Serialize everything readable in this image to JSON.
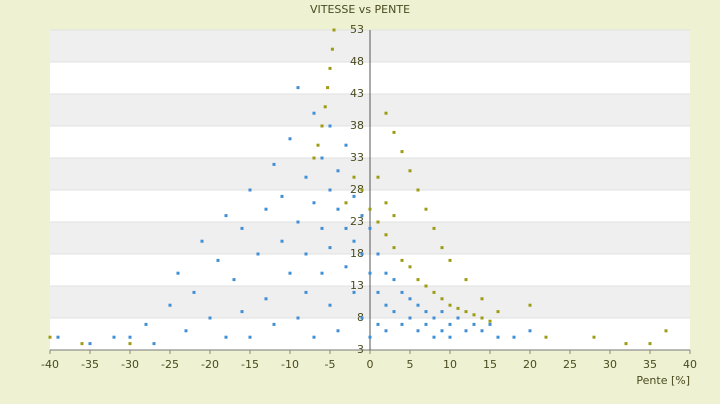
{
  "chart_data": {
    "type": "scatter",
    "title": "VITESSE vs PENTE",
    "x_label": "Pente [%]",
    "xlim": [
      -40,
      40
    ],
    "xticks": [
      -40,
      -35,
      -30,
      -25,
      -20,
      -15,
      -10,
      -5,
      0,
      5,
      10,
      15,
      20,
      25,
      30,
      35,
      40
    ],
    "ylim": [
      3,
      53
    ],
    "yticks": [
      3,
      8,
      13,
      18,
      23,
      28,
      33,
      38,
      43,
      48,
      53
    ],
    "grid": true,
    "series": [
      {
        "color": "#3f8fd6",
        "x": [
          -30,
          -28,
          -27,
          -25,
          -24,
          -23,
          -22,
          -21,
          -20,
          -19,
          -18,
          -18,
          -17,
          -16,
          -16,
          -15,
          -15,
          -14,
          -13,
          -13,
          -12,
          -12,
          -11,
          -11,
          -10,
          -10,
          -9,
          -9,
          -9,
          -8,
          -8,
          -8,
          -7,
          -7,
          -7,
          -6,
          -6,
          -6,
          -5,
          -5,
          -5,
          -5,
          -4,
          -4,
          -4,
          -3,
          -3,
          -3,
          -2,
          -2,
          -2,
          -1,
          -1,
          -1,
          0,
          0,
          0,
          1,
          1,
          1,
          2,
          2,
          2,
          3,
          3,
          4,
          4,
          5,
          5,
          6,
          6,
          7,
          7,
          8,
          8,
          9,
          9,
          10,
          10,
          11,
          12,
          13,
          14,
          15,
          16,
          18,
          20,
          -35,
          -32,
          -39
        ],
        "values": [
          5,
          7,
          4,
          10,
          15,
          6,
          12,
          20,
          8,
          17,
          24,
          5,
          14,
          22,
          9,
          28,
          5,
          18,
          25,
          11,
          32,
          7,
          20,
          27,
          15,
          36,
          23,
          8,
          44,
          30,
          18,
          12,
          26,
          40,
          5,
          22,
          33,
          15,
          28,
          38,
          19,
          10,
          25,
          31,
          6,
          22,
          35,
          16,
          27,
          12,
          20,
          24,
          18,
          8,
          22,
          15,
          5,
          18,
          12,
          7,
          15,
          10,
          6,
          14,
          9,
          12,
          7,
          11,
          8,
          10,
          6,
          9,
          7,
          8,
          5,
          9,
          6,
          7,
          5,
          8,
          6,
          7,
          6,
          7,
          5,
          5,
          6,
          4,
          5,
          5
        ]
      },
      {
        "color": "#9c9c12",
        "x": [
          -4.5,
          -4.7,
          -5,
          -5.3,
          -5.6,
          -6,
          -6.5,
          -7,
          -40,
          -36,
          -30,
          0,
          1,
          2,
          3,
          4,
          5,
          6,
          7,
          8,
          9,
          10,
          11,
          12,
          13,
          14,
          15,
          2,
          3,
          4,
          5,
          6,
          7,
          8,
          9,
          10,
          12,
          14,
          16,
          -2,
          -1,
          -3,
          20,
          22,
          28,
          32,
          35,
          37,
          1,
          2,
          3
        ],
        "values": [
          53,
          50,
          47,
          44,
          41,
          38,
          35,
          33,
          5,
          4,
          4,
          25,
          23,
          21,
          19,
          17,
          16,
          14,
          13,
          12,
          11,
          10,
          9.5,
          9,
          8.5,
          8,
          7.5,
          40,
          37,
          34,
          31,
          28,
          25,
          22,
          19,
          17,
          14,
          11,
          9,
          30,
          28,
          26,
          10,
          5,
          5,
          4,
          4,
          6,
          30,
          26,
          24
        ]
      }
    ]
  }
}
